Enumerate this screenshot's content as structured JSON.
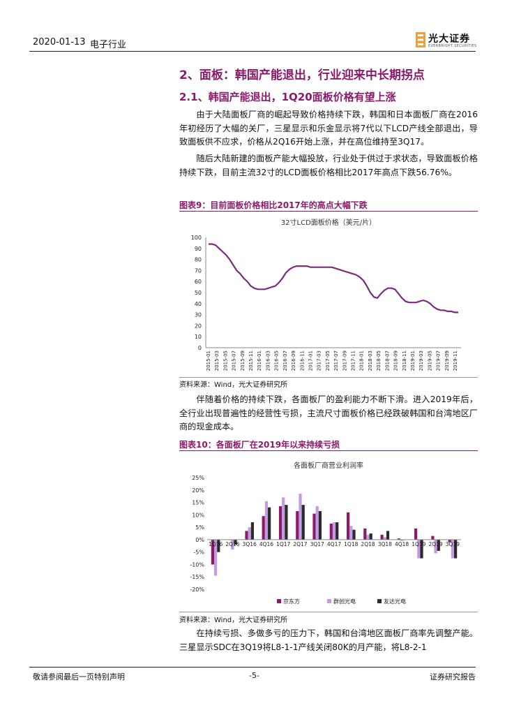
{
  "header": {
    "date": "2020-01-13",
    "industry": "电子行业",
    "logo_cn": "光大证券",
    "logo_en": "EVERBRIGHT SECURITIES"
  },
  "section": {
    "title": "2、面板：韩国产能退出，行业迎来中长期拐点",
    "subtitle": "2.1、韩国产能退出，1Q20面板价格有望上涨"
  },
  "paragraphs": {
    "p1": "由于大陆面板厂商的崛起导致价格持续下跌，韩国和日本面板厂商在2016年初经历了大幅的关厂，三星显示和乐金显示将7代以下LCD产线全部退出，导致面板供不应求，价格从2Q16开始上涨，并在高位维持至3Q17。",
    "p2": "随后大陆新建的面板产能大幅投放，行业处于供过于求状态，导致面板价格持续下跌，目前主流32寸的LCD面板价格相比2017年高点下跌56.76%。",
    "p3": "伴随着价格的持续下跌，各面板厂的盈利能力不断下滑。进入2019年后，全行业出现普遍性的经营性亏损，主流尺寸面板价格已经跌破韩国和台湾地区厂商的现金成本。",
    "p4": "在持续亏损、多做多亏的压力下，韩国和台湾地区面板厂商率先调整产能。三星显示SDC在3Q19将L8-1-1产线关闭80K的月产能，将L8-2-1"
  },
  "figures": {
    "fig9_caption": "图表9：目前面板价格相比2017年的高点大幅下跌",
    "fig9_source": "资料来源：Wind，光大证券研究所",
    "fig10_caption": "图表10：各面板厂在2019年以来持续亏损",
    "fig10_source": "资料来源：Wind，光大证券研究所"
  },
  "footer": {
    "left": "敬请参阅最后一页特别声明",
    "page": "-5-",
    "right": "证券研究报告"
  },
  "colors": {
    "accent": "#8b1a6b",
    "line": "#7b2a7e",
    "boe": "#8b1a6b",
    "innolux": "#c39be0",
    "auo": "#2b2b2b"
  },
  "chart_data": [
    {
      "type": "line",
      "title": "32寸LCD面板价格（美元/片）",
      "ylim": [
        0,
        100
      ],
      "yticks": [
        0,
        10,
        20,
        30,
        40,
        50,
        60,
        70,
        80,
        90,
        100
      ],
      "xtick_labels": [
        "2015-01",
        "2015-03",
        "2015-05",
        "2015-07",
        "2015-09",
        "2015-11",
        "2016-01",
        "2016-03",
        "2016-05",
        "2016-07",
        "2016-09",
        "2016-11",
        "2017-01",
        "2017-03",
        "2017-05",
        "2017-07",
        "2017-09",
        "2017-11",
        "2018-01",
        "2018-03",
        "2018-05",
        "2018-07",
        "2018-09",
        "2018-11",
        "2019-01",
        "2019-03",
        "2019-05",
        "2019-07",
        "2019-09",
        "2019-11"
      ],
      "grid": false,
      "series": [
        {
          "values": [
            94,
            94,
            93,
            90,
            87,
            84,
            80,
            75,
            70,
            67,
            63,
            60,
            56,
            54,
            53,
            53,
            53,
            54,
            55,
            56,
            59,
            63,
            68,
            71,
            73,
            74,
            74,
            74,
            74,
            73,
            73,
            73,
            73,
            73,
            73,
            73,
            72,
            71,
            70,
            69,
            68,
            67,
            66,
            64,
            61,
            56,
            50,
            46,
            45,
            49,
            52,
            54,
            54,
            53,
            49,
            45,
            42,
            41,
            41,
            41,
            42,
            43,
            42,
            40,
            37,
            35,
            34,
            34,
            33,
            33,
            32,
            32
          ]
        }
      ]
    },
    {
      "type": "bar",
      "title": "各面板厂商营业利润率",
      "ylim": [
        -20,
        25
      ],
      "yticks": [
        "-20%",
        "-15%",
        "-10%",
        "-5%",
        "0%",
        "5%",
        "10%",
        "15%",
        "20%",
        "25%"
      ],
      "categories": [
        "1Q16",
        "2Q16",
        "3Q16",
        "4Q16",
        "1Q17",
        "2Q17",
        "3Q17",
        "4Q17",
        "1Q18",
        "2Q18",
        "3Q18",
        "4Q18",
        "1Q19",
        "2Q19",
        "3Q19"
      ],
      "legend_position": "bottom",
      "series": [
        {
          "name": "京东方",
          "values": [
            -10,
            0,
            3.5,
            9.5,
            13.5,
            11.5,
            10.5,
            6.5,
            11,
            4.5,
            2,
            0.5,
            4.5,
            1.5,
            -1
          ]
        },
        {
          "name": "群创光电",
          "values": [
            -14.5,
            -4,
            5,
            15.5,
            17,
            18.5,
            13.5,
            7,
            5.5,
            2,
            1,
            -0.5,
            -7.5,
            -5.5,
            -7.5
          ]
        },
        {
          "name": "友达光电",
          "values": [
            -5,
            -2,
            7,
            13,
            14,
            14,
            11.5,
            7,
            4,
            2.5,
            3.5,
            0,
            -7.5,
            -4.5,
            -7.5
          ]
        }
      ]
    }
  ]
}
